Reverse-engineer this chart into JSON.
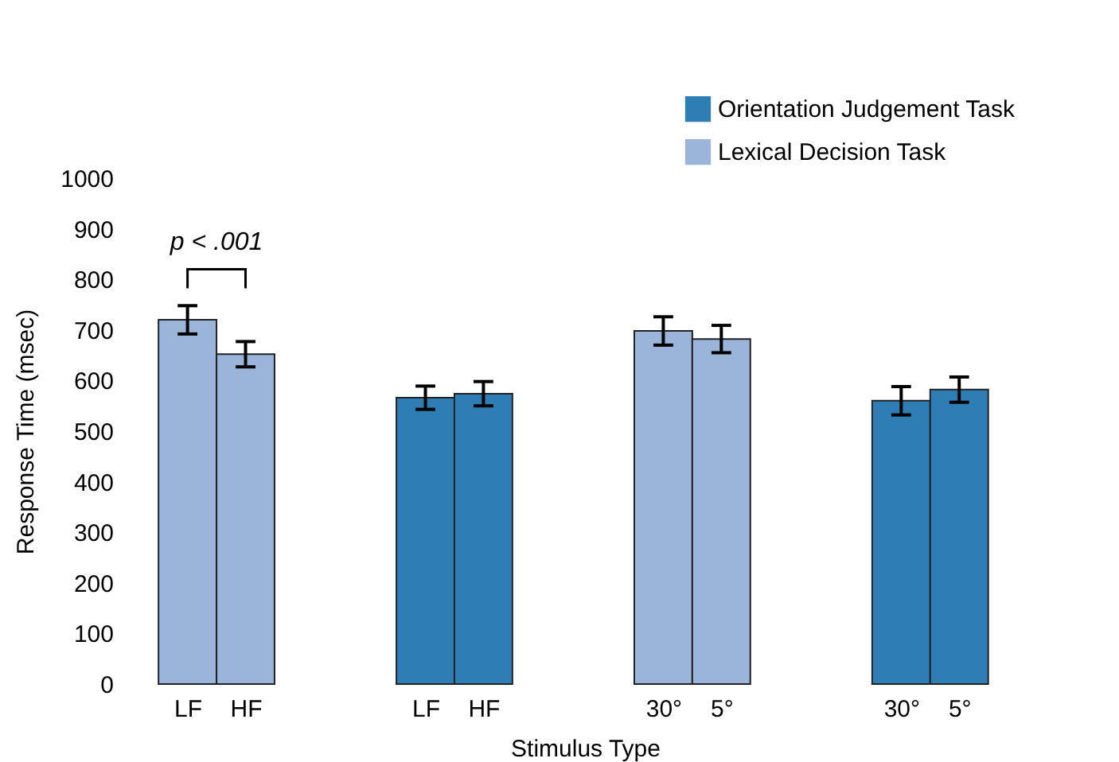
{
  "chart_data": {
    "type": "bar",
    "xlabel": "Stimulus Type",
    "ylabel": "Response Time (msec)",
    "categories": [
      "LF",
      "HF",
      "LF",
      "HF",
      "30°",
      "5°",
      "30°",
      "5°"
    ],
    "series": [
      {
        "name": "Orientation Judgement Task",
        "color": "#2e7db5",
        "values": [
          null,
          null,
          566,
          574,
          null,
          null,
          560,
          582
        ],
        "errors": [
          null,
          null,
          23,
          24,
          null,
          null,
          28,
          25
        ]
      },
      {
        "name": "Lexical Decision Task",
        "color": "#9ab5d9",
        "values": [
          720,
          652,
          null,
          null,
          698,
          682,
          null,
          null
        ],
        "errors": [
          28,
          25,
          null,
          null,
          28,
          27,
          null,
          null
        ]
      }
    ],
    "ylim": [
      0,
      1000
    ],
    "yticks": [
      0,
      100,
      200,
      300,
      400,
      500,
      600,
      700,
      800,
      900,
      1000
    ],
    "legend": "top right",
    "grid": false,
    "annotations": [
      "p < .001"
    ]
  }
}
